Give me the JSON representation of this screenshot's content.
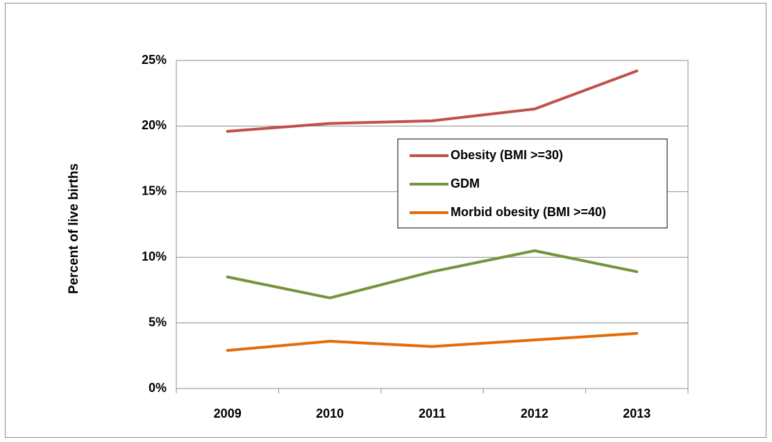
{
  "chart_data": {
    "type": "line",
    "categories": [
      "2009",
      "2010",
      "2011",
      "2012",
      "2013"
    ],
    "ylabel": "Percent of live births",
    "xlabel": "",
    "ylim": [
      0,
      25
    ],
    "yticks": [
      0,
      5,
      10,
      15,
      20,
      25
    ],
    "ytick_labels": [
      "0%",
      "5%",
      "10%",
      "15%",
      "20%",
      "25%"
    ],
    "grid": true,
    "legend_position": "right",
    "series": [
      {
        "name": "Obesity (BMI >=30)",
        "color": "#c0504d",
        "values": [
          19.6,
          20.2,
          20.4,
          21.3,
          24.2
        ]
      },
      {
        "name": "GDM",
        "color": "#77933c",
        "values": [
          8.5,
          6.9,
          8.9,
          10.5,
          8.9
        ]
      },
      {
        "name": "Morbid obesity (BMI >=40)",
        "color": "#e36c09",
        "values": [
          2.9,
          3.6,
          3.2,
          3.7,
          4.2
        ]
      }
    ]
  }
}
